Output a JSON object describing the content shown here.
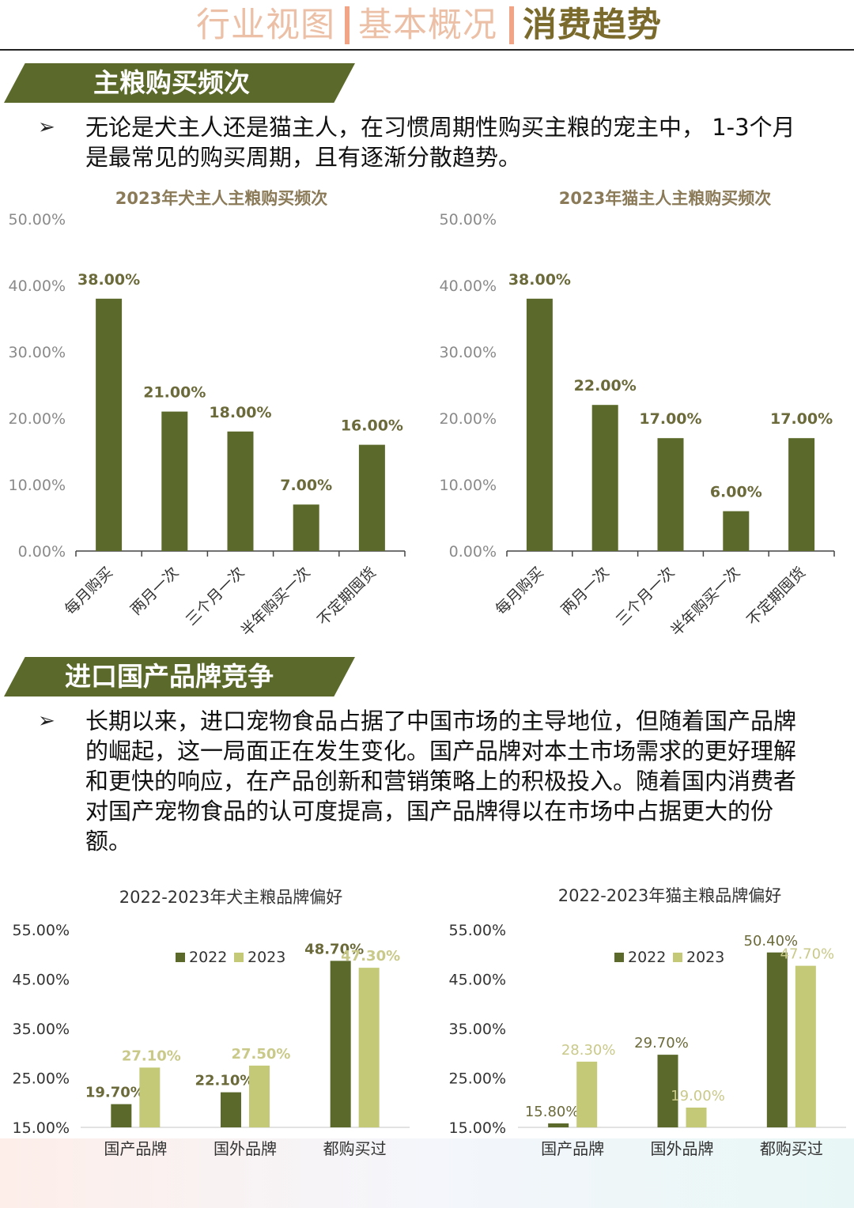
{
  "header": {
    "nav": [
      "行业视图",
      "基本概况",
      "消费趋势"
    ],
    "active_index": 2
  },
  "section1": {
    "title": "主粮购买频次",
    "text": "无论是犬主人还是猫主人，在习惯周期性购买主粮的宠主中， 1-3个月是最常见的购买周期，且有逐渐分散趋势。"
  },
  "section2": {
    "title": "进口国产品牌竞争",
    "text": "长期以来，进口宠物食品占据了中国市场的主导地位，但随着国产品牌的崛起，这一局面正在发生变化。国产品牌对本土市场需求的更好理解和更快的响应，在产品创新和营销策略上的积极投入。随着国内消费者对国产宠物食品的认可度提高，国产品牌得以在市场中占据更大的份额。"
  },
  "colors": {
    "dark_olive": "#5b6a2a",
    "light_olive": "#c4c978",
    "title_brown": "#8a7a58"
  },
  "chart_data": [
    {
      "type": "bar",
      "title": "2023年犬主人主粮购买频次",
      "categories": [
        "每月购买",
        "两月一次",
        "三个月一次",
        "半年购买一次",
        "不定期囤货"
      ],
      "values": [
        38.0,
        21.0,
        18.0,
        7.0,
        16.0
      ],
      "data_labels": [
        "38.00%",
        "21.00%",
        "18.00%",
        "7.00%",
        "16.00%"
      ],
      "ylim": [
        0,
        50
      ],
      "yticks": [
        "0.00%",
        "10.00%",
        "20.00%",
        "30.00%",
        "40.00%",
        "50.00%"
      ],
      "grid": false
    },
    {
      "type": "bar",
      "title": "2023年猫主人主粮购买频次",
      "categories": [
        "每月购买",
        "两月一次",
        "三个月一次",
        "半年购买一次",
        "不定期囤货"
      ],
      "values": [
        38.0,
        22.0,
        17.0,
        6.0,
        17.0
      ],
      "data_labels": [
        "38.00%",
        "22.00%",
        "17.00%",
        "6.00%",
        "17.00%"
      ],
      "ylim": [
        0,
        50
      ],
      "yticks": [
        "0.00%",
        "10.00%",
        "20.00%",
        "30.00%",
        "40.00%",
        "50.00%"
      ],
      "grid": false
    },
    {
      "type": "bar",
      "title": "2022-2023年犬主粮品牌偏好",
      "categories": [
        "国产品牌",
        "国外品牌",
        "都购买过"
      ],
      "series": [
        {
          "name": "2022",
          "values": [
            19.7,
            22.1,
            48.7
          ],
          "labels": [
            "19.70%",
            "22.10%",
            "48.70%"
          ]
        },
        {
          "name": "2023",
          "values": [
            27.1,
            27.5,
            47.3
          ],
          "labels": [
            "27.10%",
            "27.50%",
            "47.30%"
          ]
        }
      ],
      "ylim": [
        15,
        55
      ],
      "yticks": [
        "15.00%",
        "25.00%",
        "35.00%",
        "45.00%",
        "55.00%"
      ],
      "legend": "top-center"
    },
    {
      "type": "bar",
      "title": "2022-2023年猫主粮品牌偏好",
      "categories": [
        "国产品牌",
        "国外品牌",
        "都购买过"
      ],
      "series": [
        {
          "name": "2022",
          "values": [
            15.8,
            29.7,
            50.4
          ],
          "labels": [
            "15.80%",
            "29.70%",
            "50.40%"
          ]
        },
        {
          "name": "2023",
          "values": [
            28.3,
            19.0,
            47.7
          ],
          "labels": [
            "28.30%",
            "19.00%",
            "47.70%"
          ]
        }
      ],
      "ylim": [
        15,
        55
      ],
      "yticks": [
        "15.00%",
        "25.00%",
        "35.00%",
        "45.00%",
        "55.00%"
      ],
      "legend": "top-center"
    }
  ]
}
